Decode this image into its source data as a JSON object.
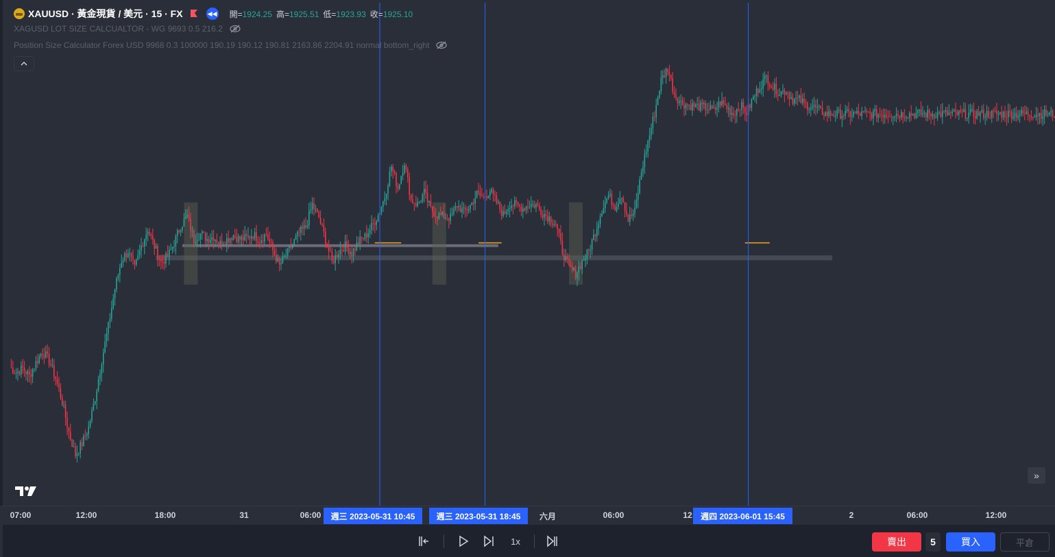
{
  "legend": {
    "symbol": "XAUUSD · 黃金現貨 / 美元 · 15 · FX",
    "open_label": "開=",
    "open": "1924.25",
    "high_label": "高=",
    "high": "1925.51",
    "low_label": "低=",
    "low": "1923.93",
    "close_label": "收=",
    "close": "1925.10",
    "indicator1": "XAGUSD LOT SIZE CALCUALTOR - WG 9693 0.5 216.2",
    "indicator2": "Position Size Calculator Forex USD 9968 0.3 100000 190.19 190.12 190.81 2163.86 2204.91 normal bottom_right",
    "collapse_icon": "chevron-up-icon"
  },
  "colors": {
    "up": "#26a69a",
    "down": "#f23645",
    "cursor": "#2962ff",
    "level": "#f5a623",
    "background": "#2a2e39"
  },
  "time_axis": {
    "ticks": [
      "07:00",
      "12:00",
      "18:00",
      "31",
      "06:00",
      "六月",
      "06:00",
      "12:",
      "2",
      "06:00",
      "12:00"
    ],
    "cursor_labels": [
      "週三 2023-05-31   10:45",
      "週三 2023-05-31   18:45",
      "週四 2023-06-01   15:45"
    ]
  },
  "playback": {
    "speed": "1x"
  },
  "trading": {
    "sell_label": "賣出",
    "quantity": "5",
    "buy_label": "買入",
    "close_label": "平倉"
  },
  "chart_data": {
    "type": "candlestick",
    "price_path": [
      [
        0,
        1946.2
      ],
      [
        4,
        1945.4
      ],
      [
        8,
        1946.0
      ],
      [
        12,
        1944.9
      ],
      [
        16,
        1946.8
      ],
      [
        20,
        1948.5
      ],
      [
        24,
        1947.1
      ],
      [
        28,
        1944.6
      ],
      [
        32,
        1941.2
      ],
      [
        36,
        1936.8
      ],
      [
        40,
        1933.6
      ],
      [
        44,
        1935.2
      ],
      [
        48,
        1937.5
      ],
      [
        52,
        1941.8
      ],
      [
        56,
        1947.2
      ],
      [
        60,
        1952.0
      ],
      [
        64,
        1957.4
      ],
      [
        68,
        1961.5
      ],
      [
        72,
        1962.8
      ],
      [
        76,
        1960.3
      ],
      [
        80,
        1963.5
      ],
      [
        84,
        1966.0
      ],
      [
        88,
        1963.5
      ],
      [
        92,
        1961.2
      ],
      [
        96,
        1962.0
      ],
      [
        100,
        1964.0
      ],
      [
        104,
        1966.5
      ],
      [
        108,
        1967.8
      ],
      [
        112,
        1964.5
      ],
      [
        116,
        1965.3
      ],
      [
        120,
        1964.6
      ],
      [
        124,
        1964.9
      ],
      [
        128,
        1963.9
      ],
      [
        132,
        1964.5
      ],
      [
        136,
        1965.1
      ],
      [
        140,
        1964.5
      ],
      [
        144,
        1964.7
      ],
      [
        148,
        1965.2
      ],
      [
        152,
        1964.4
      ],
      [
        156,
        1965.3
      ],
      [
        160,
        1962.9
      ],
      [
        164,
        1960.7
      ],
      [
        168,
        1962.2
      ],
      [
        172,
        1963.8
      ],
      [
        176,
        1965.4
      ],
      [
        180,
        1966.3
      ],
      [
        184,
        1969.5
      ],
      [
        188,
        1967.6
      ],
      [
        192,
        1964.5
      ],
      [
        196,
        1961.2
      ],
      [
        200,
        1962.8
      ],
      [
        204,
        1963.6
      ],
      [
        208,
        1962.6
      ],
      [
        212,
        1964.1
      ],
      [
        216,
        1964.9
      ],
      [
        220,
        1966.3
      ],
      [
        224,
        1968.0
      ],
      [
        228,
        1970.6
      ],
      [
        232,
        1975.0
      ],
      [
        236,
        1971.9
      ],
      [
        240,
        1975.6
      ],
      [
        244,
        1970.2
      ],
      [
        248,
        1969.5
      ],
      [
        252,
        1971.2
      ],
      [
        256,
        1968.8
      ],
      [
        260,
        1968.0
      ],
      [
        264,
        1967.8
      ],
      [
        268,
        1967.6
      ],
      [
        272,
        1969.4
      ],
      [
        276,
        1968.4
      ],
      [
        280,
        1969.3
      ],
      [
        284,
        1971.0
      ],
      [
        288,
        1970.5
      ],
      [
        292,
        1971.5
      ],
      [
        296,
        1969.8
      ],
      [
        300,
        1968.0
      ],
      [
        304,
        1969.6
      ],
      [
        308,
        1969.4
      ],
      [
        312,
        1969.0
      ],
      [
        316,
        1969.5
      ],
      [
        320,
        1969.4
      ],
      [
        324,
        1968.3
      ],
      [
        328,
        1967.6
      ],
      [
        332,
        1966.7
      ],
      [
        336,
        1962.8
      ],
      [
        340,
        1960.4
      ],
      [
        344,
        1959.6
      ],
      [
        348,
        1961.3
      ],
      [
        352,
        1962.8
      ],
      [
        356,
        1965.6
      ],
      [
        360,
        1968.8
      ],
      [
        364,
        1970.8
      ],
      [
        368,
        1969.2
      ],
      [
        372,
        1971.0
      ],
      [
        376,
        1967.3
      ],
      [
        380,
        1968.5
      ],
      [
        384,
        1974.2
      ],
      [
        388,
        1978.5
      ],
      [
        392,
        1982.6
      ],
      [
        396,
        1987.3
      ],
      [
        400,
        1989.1
      ],
      [
        404,
        1985.4
      ],
      [
        408,
        1984.1
      ],
      [
        412,
        1983.8
      ],
      [
        416,
        1983.6
      ],
      [
        420,
        1983.5
      ],
      [
        424,
        1983.4
      ],
      [
        428,
        1982.9
      ],
      [
        432,
        1984.2
      ],
      [
        436,
        1983.4
      ],
      [
        440,
        1982.5
      ],
      [
        444,
        1983.8
      ],
      [
        448,
        1982.7
      ],
      [
        452,
        1984.8
      ],
      [
        456,
        1986.5
      ],
      [
        460,
        1987.8
      ],
      [
        464,
        1986.3
      ],
      [
        468,
        1985.6
      ],
      [
        472,
        1985.9
      ],
      [
        476,
        1984.6
      ],
      [
        480,
        1984.5
      ],
      [
        484,
        1983.8
      ],
      [
        488,
        1983.6
      ],
      [
        492,
        1983.0
      ],
      [
        496,
        1982.5
      ]
    ],
    "support_zone": [
      1961.5,
      1962.2
    ],
    "entry_level": 1963.6,
    "vertical_markers": [
      "週三 2023-05-31 10:45",
      "週三 2023-05-31 18:45",
      "週四 2023-06-01 15:45"
    ]
  }
}
